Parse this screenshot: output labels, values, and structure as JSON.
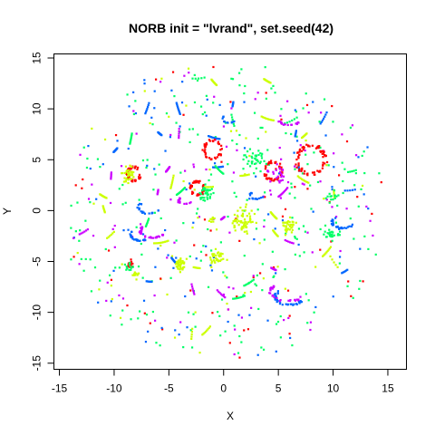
{
  "chart_data": {
    "type": "scatter",
    "title": "NORB init = \"lvrand\", set.seed(42)",
    "xlabel": "X",
    "ylabel": "Y",
    "xlim": [
      -15.5,
      16.7
    ],
    "ylim": [
      -15.6,
      15.4
    ],
    "xticks": [
      -15,
      -10,
      -5,
      0,
      5,
      10,
      15
    ],
    "yticks": [
      -15,
      -10,
      -5,
      0,
      5,
      10,
      15
    ],
    "grid": false,
    "legend": "none",
    "colors": {
      "red": "#ff0000",
      "yellow": "#ccff00",
      "green": "#00ff66",
      "blue": "#0066ff",
      "magenta": "#cc00ff"
    },
    "clusters": [
      {
        "color": "red",
        "shape": "ring",
        "cx": -8.2,
        "cy": 3.6,
        "r": 0.6,
        "n": 40
      },
      {
        "color": "yellow",
        "shape": "blob",
        "cx": -8.8,
        "cy": 3.6,
        "r": 0.7,
        "n": 35
      },
      {
        "color": "red",
        "shape": "ring",
        "cx": -2.4,
        "cy": 2.2,
        "r": 0.6,
        "n": 45
      },
      {
        "color": "green",
        "shape": "blob",
        "cx": -1.6,
        "cy": 1.7,
        "r": 0.7,
        "n": 35
      },
      {
        "color": "red",
        "shape": "ring",
        "cx": -1.0,
        "cy": 6.0,
        "r": 0.8,
        "n": 40
      },
      {
        "color": "red",
        "shape": "ring",
        "cx": 4.5,
        "cy": 3.9,
        "r": 0.8,
        "n": 45
      },
      {
        "color": "red",
        "shape": "ring",
        "cx": 8.0,
        "cy": 5.0,
        "r": 1.3,
        "n": 70
      },
      {
        "color": "green",
        "shape": "blob",
        "cx": 2.8,
        "cy": 5.0,
        "r": 0.9,
        "n": 40
      },
      {
        "color": "magenta",
        "shape": "blob",
        "cx": 5.0,
        "cy": 3.6,
        "r": 0.9,
        "n": 25
      },
      {
        "color": "magenta",
        "shape": "arc",
        "cx": -6.5,
        "cy": -2.0,
        "r": 1.1,
        "n": 30
      },
      {
        "color": "blue",
        "shape": "arc",
        "cx": -7.6,
        "cy": -2.4,
        "r": 0.9,
        "n": 25
      },
      {
        "color": "blue",
        "shape": "arc",
        "cx": -6.8,
        "cy": 0.3,
        "r": 1.0,
        "n": 20
      },
      {
        "color": "yellow",
        "shape": "blob",
        "cx": 1.8,
        "cy": -1.0,
        "r": 1.1,
        "n": 60
      },
      {
        "color": "yellow",
        "shape": "blob",
        "cx": 6.0,
        "cy": -1.6,
        "r": 0.7,
        "n": 35
      },
      {
        "color": "yellow",
        "shape": "blob",
        "cx": -4.0,
        "cy": -5.3,
        "r": 0.6,
        "n": 35
      },
      {
        "color": "yellow",
        "shape": "blob",
        "cx": -0.7,
        "cy": -4.6,
        "r": 0.7,
        "n": 35
      },
      {
        "color": "blue",
        "shape": "arc",
        "cx": 10.9,
        "cy": -1.1,
        "r": 1.0,
        "n": 30
      },
      {
        "color": "green",
        "shape": "blob",
        "cx": 9.8,
        "cy": -2.4,
        "r": 0.6,
        "n": 25
      },
      {
        "color": "blue",
        "shape": "arc",
        "cx": 6.0,
        "cy": -8.5,
        "r": 1.3,
        "n": 35
      },
      {
        "color": "magenta",
        "shape": "arc",
        "cx": 5.8,
        "cy": -8.0,
        "r": 1.5,
        "n": 25
      },
      {
        "color": "red",
        "shape": "blob",
        "cx": -8.5,
        "cy": -5.3,
        "r": 0.3,
        "n": 15
      },
      {
        "color": "green",
        "shape": "blob",
        "cx": -8.5,
        "cy": -5.6,
        "r": 0.5,
        "n": 15
      },
      {
        "color": "yellow",
        "shape": "blob",
        "cx": -8.0,
        "cy": -6.2,
        "r": 0.4,
        "n": 10
      },
      {
        "color": "magenta",
        "shape": "arc",
        "cx": -3.5,
        "cy": 1.0,
        "r": 0.6,
        "n": 15
      },
      {
        "color": "blue",
        "shape": "arc",
        "cx": 3.0,
        "cy": 1.5,
        "r": 0.6,
        "n": 15
      },
      {
        "color": "magenta",
        "shape": "arc",
        "cx": 6.0,
        "cy": 9.0,
        "r": 1.0,
        "n": 18
      },
      {
        "color": "blue",
        "shape": "arc",
        "cx": 0.5,
        "cy": 9.0,
        "r": 0.6,
        "n": 12
      },
      {
        "color": "green",
        "shape": "blob",
        "cx": 10.0,
        "cy": 1.3,
        "r": 0.5,
        "n": 15
      },
      {
        "color": "yellow",
        "shape": "blob",
        "cx": -1.0,
        "cy": -0.8,
        "r": 0.3,
        "n": 8
      }
    ],
    "scatter_background": {
      "n": 520,
      "radius": 14.8
    }
  }
}
